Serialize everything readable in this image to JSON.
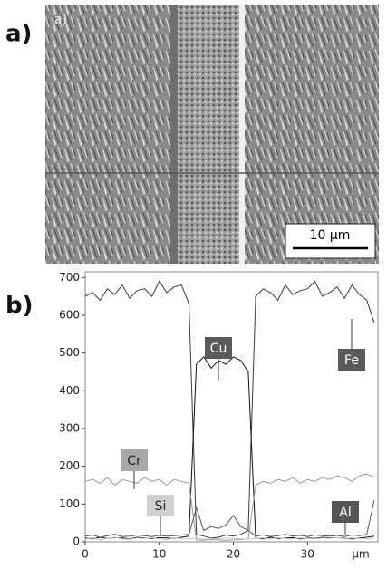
{
  "panel_a": {
    "label": "a)",
    "image_label": "a)",
    "scale_bar": "10 μm"
  },
  "panel_b": {
    "label": "b)"
  },
  "chart_data": {
    "type": "line",
    "xlabel": "μm",
    "x": [
      0,
      1,
      2,
      3,
      4,
      5,
      6,
      7,
      8,
      9,
      10,
      11,
      12,
      13,
      14,
      15,
      16,
      17,
      18,
      19,
      20,
      21,
      22,
      23,
      24,
      25,
      26,
      27,
      28,
      29,
      30,
      31,
      32,
      33,
      34,
      35,
      36,
      37,
      38,
      39
    ],
    "xlim": [
      0,
      39.5
    ],
    "xticks": [
      0,
      10,
      20,
      30
    ],
    "ylim": [
      0,
      715
    ],
    "yticks": [
      0,
      100,
      200,
      300,
      400,
      500,
      600,
      700
    ],
    "series": [
      {
        "name": "Fe",
        "color": "#3a3a3a",
        "values": [
          650,
          660,
          640,
          670,
          655,
          680,
          645,
          665,
          670,
          650,
          690,
          660,
          675,
          680,
          630,
          20,
          15,
          10,
          12,
          18,
          15,
          20,
          30,
          650,
          670,
          660,
          640,
          680,
          655,
          665,
          670,
          690,
          650,
          660,
          675,
          645,
          680,
          655,
          640,
          580
        ]
      },
      {
        "name": "Cu",
        "color": "#111111",
        "values": [
          10,
          8,
          12,
          9,
          11,
          10,
          8,
          12,
          10,
          9,
          11,
          10,
          9,
          12,
          15,
          470,
          490,
          460,
          480,
          470,
          490,
          480,
          450,
          10,
          8,
          12,
          9,
          10,
          11,
          8,
          10,
          9,
          12,
          10,
          11,
          9,
          8,
          10,
          12,
          15
        ]
      },
      {
        "name": "Cr",
        "color": "#9a9a9a",
        "values": [
          160,
          165,
          155,
          170,
          150,
          165,
          160,
          155,
          170,
          160,
          165,
          150,
          165,
          160,
          155,
          5,
          4,
          6,
          5,
          4,
          5,
          6,
          8,
          150,
          160,
          155,
          165,
          160,
          170,
          155,
          165,
          160,
          170,
          165,
          175,
          170,
          160,
          175,
          180,
          170
        ]
      },
      {
        "name": "Si",
        "color": "#c4c4c4",
        "values": [
          8,
          10,
          6,
          9,
          12,
          8,
          7,
          10,
          9,
          11,
          8,
          6,
          10,
          9,
          8,
          10,
          7,
          9,
          8,
          10,
          9,
          8,
          7,
          9,
          10,
          8,
          11,
          9,
          8,
          10,
          9,
          8,
          10,
          9,
          11,
          8,
          10,
          9,
          8,
          10
        ]
      },
      {
        "name": "Al",
        "color": "#555555",
        "values": [
          15,
          18,
          12,
          16,
          20,
          14,
          15,
          18,
          16,
          14,
          17,
          15,
          16,
          18,
          20,
          90,
          30,
          40,
          35,
          45,
          70,
          40,
          30,
          15,
          18,
          14,
          16,
          20,
          15,
          17,
          14,
          18,
          16,
          15,
          17,
          14,
          18,
          16,
          20,
          110
        ]
      }
    ]
  }
}
